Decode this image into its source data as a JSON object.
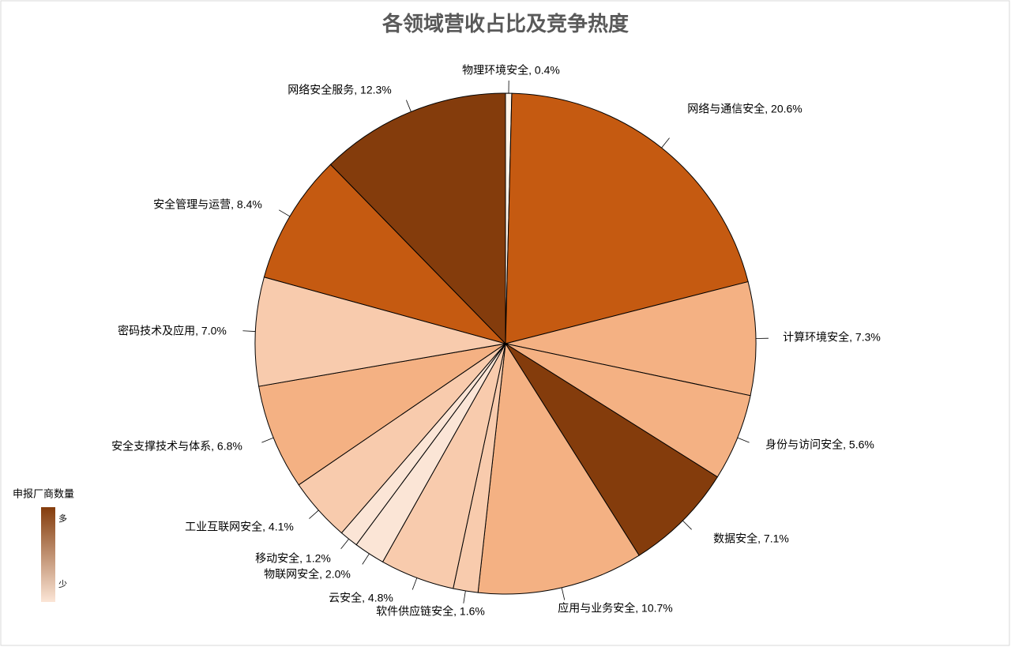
{
  "chart_data": {
    "type": "pie",
    "title": "各领域营收占比及竞争热度",
    "values": [
      0.4,
      20.6,
      7.3,
      5.6,
      7.1,
      10.7,
      1.6,
      4.8,
      2.0,
      1.2,
      4.1,
      6.8,
      7.0,
      8.4,
      12.3
    ],
    "value_labels": [
      "物理环境安全, 0.4%",
      "网络与通信安全, 20.6%",
      "计算环境安全, 7.3%",
      "身份与访问安全, 5.6%",
      "数据安全, 7.1%",
      "应用与业务安全, 10.7%",
      "软件供应链安全, 1.6%",
      "云安全, 4.8%",
      "物联网安全, 2.0%",
      "移动安全, 1.2%",
      "工业互联网安全, 4.1%",
      "安全支撑技术与体系, 6.8%",
      "密码技术及应用, 7.0%",
      "安全管理与运营, 8.4%",
      "网络安全服务, 12.3%"
    ],
    "colors": [
      "#fff5eb",
      "#c55a11",
      "#f4b183",
      "#f4b183",
      "#843c0c",
      "#f4b183",
      "#f8cbad",
      "#f8cbad",
      "#fbe5d6",
      "#fbe5d6",
      "#f8cbad",
      "#f4b183",
      "#f8cbad",
      "#c55a11",
      "#843c0c"
    ],
    "legend": {
      "title": "申报厂商数量",
      "high": "多",
      "low": "少",
      "colors": [
        "#843c0c",
        "#fbe5d6"
      ]
    }
  }
}
